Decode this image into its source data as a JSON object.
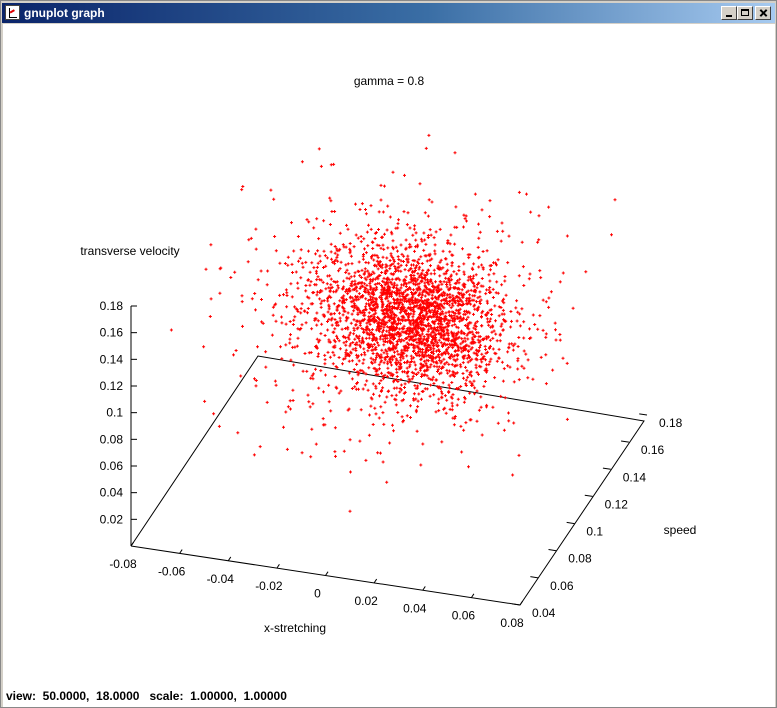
{
  "window": {
    "title": "gnuplot graph"
  },
  "status": {
    "text": "view:  50.0000,  18.0000   scale:  1.00000,  1.00000"
  },
  "chart_data": {
    "type": "scatter",
    "title": "gamma = 0.8",
    "xlabel": "x-stretching",
    "ylabel": "speed",
    "zlabel": "transverse velocity",
    "xlim": [
      -0.08,
      0.08
    ],
    "ylim": [
      0.04,
      0.18
    ],
    "zlim": [
      0,
      0.18
    ],
    "xticks": [
      "-0.08",
      "-0.06",
      "-0.04",
      "-0.02",
      "0",
      "0.02",
      "0.04",
      "0.06",
      "0.08"
    ],
    "yticks": [
      "0.04",
      "0.06",
      "0.08",
      "0.1",
      "0.12",
      "0.14",
      "0.16",
      "0.18"
    ],
    "zticks": [
      "0.02",
      "0.04",
      "0.06",
      "0.08",
      "0.1",
      "0.12",
      "0.14",
      "0.16",
      "0.18"
    ],
    "view": {
      "rot_x": 50,
      "rot_z": 18
    },
    "grid": false,
    "marker": "+",
    "color": "#ff0000",
    "series": [
      {
        "points_summary": "about 5000 points; points drawn here are a representative sample",
        "clusters": [
          {
            "center": [
              -0.003,
              0.115,
              0.125
            ],
            "spread": [
              0.016,
              0.014,
              0.022
            ],
            "count": 2000
          },
          {
            "center": [
              0.02,
              0.108,
              0.118
            ],
            "spread": [
              0.014,
              0.013,
              0.02
            ],
            "count": 1800
          },
          {
            "center": [
              0.005,
              0.11,
              0.12
            ],
            "spread": [
              0.032,
              0.028,
              0.04
            ],
            "count": 1200
          }
        ]
      }
    ]
  }
}
